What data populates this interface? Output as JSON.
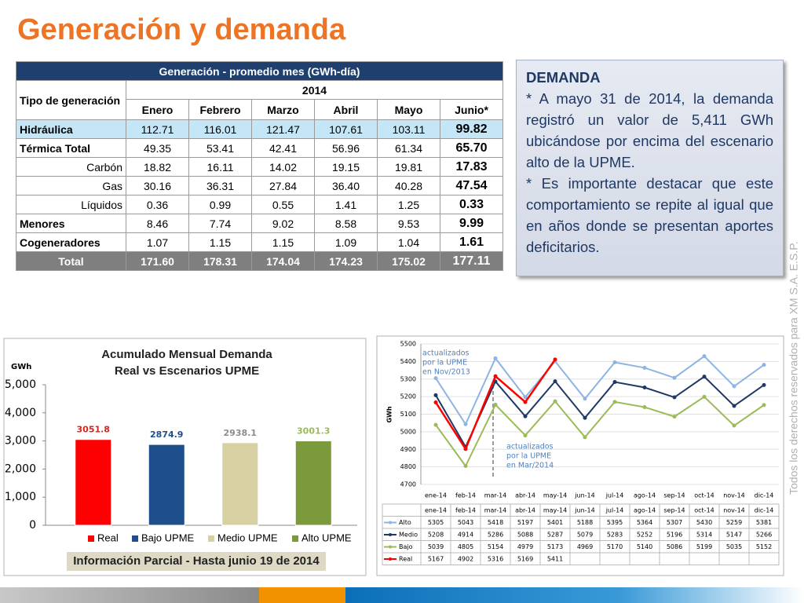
{
  "title": "Generación y demanda",
  "watermark": "Todos los derechos reservados para XM S.A. E.S.P.",
  "table": {
    "caption": "Generación - promedio mes (GWh-día)",
    "row_header": "Tipo de generación",
    "year": "2014",
    "columns": [
      "Enero",
      "Febrero",
      "Marzo",
      "Abril",
      "Mayo",
      "Junio*"
    ],
    "rows": [
      [
        "Hidráulica",
        "112.71",
        "116.01",
        "121.47",
        "107.61",
        "103.11",
        "99.82"
      ],
      [
        "Térmica Total",
        "49.35",
        "53.41",
        "42.41",
        "56.96",
        "61.34",
        "65.70"
      ],
      [
        "Carbón",
        "18.82",
        "16.11",
        "14.02",
        "19.15",
        "19.81",
        "17.83"
      ],
      [
        "Gas",
        "30.16",
        "36.31",
        "27.84",
        "36.40",
        "40.28",
        "47.54"
      ],
      [
        "Líquidos",
        "0.36",
        "0.99",
        "0.55",
        "1.41",
        "1.25",
        "0.33"
      ],
      [
        "Menores",
        "8.46",
        "7.74",
        "9.02",
        "8.58",
        "9.53",
        "9.99"
      ],
      [
        "Cogeneradores",
        "1.07",
        "1.15",
        "1.15",
        "1.09",
        "1.04",
        "1.61"
      ],
      [
        "Total",
        "171.60",
        "178.31",
        "174.04",
        "174.23",
        "175.02",
        "177.11"
      ]
    ]
  },
  "note": {
    "heading": "DEMANDA",
    "paragraphs": [
      "* A mayo 31 de 2014, la demanda registró un valor de 5,411 GWh ubicándose por encima del escenario alto de la UPME.",
      "* Es importante destacar que este comportamiento se repite al igual que en años donde se presentan aportes deficitarios."
    ]
  },
  "chart_data": [
    {
      "type": "bar",
      "title": [
        "Acumulado Mensual Demanda",
        "Real vs Escenarios UPME"
      ],
      "y_label": "GWh",
      "categories": [
        "Real",
        "Bajo UPME",
        "Medio UPME",
        "Alto UPME"
      ],
      "values": [
        3051.8,
        2874.9,
        2938.1,
        3001.3
      ],
      "colors": [
        "#ff0000",
        "#1f4e8c",
        "#d6d0a2",
        "#7a9a3c"
      ],
      "label_colors": [
        "#e0201b",
        "#1f4e8c",
        "#8c8c8c",
        "#9bbb59"
      ],
      "ylim": [
        0,
        5000
      ],
      "yticks": [
        0,
        {
          "value": 1000,
          "label": "1,000"
        },
        {
          "value": 2000,
          "label": "2,000"
        },
        {
          "value": 3000,
          "label": "3,000"
        },
        {
          "value": 4000,
          "label": "4,000"
        },
        {
          "value": 5000,
          "label": "5,000"
        }
      ],
      "legend": "bottom",
      "footnote": "Información Parcial - Hasta junio 19 de 2014"
    },
    {
      "type": "line",
      "y_label": "GWh",
      "categories": [
        "ene-14",
        "feb-14",
        "mar-14",
        "abr-14",
        "may-14",
        "jun-14",
        "jul-14",
        "ago-14",
        "sep-14",
        "oct-14",
        "nov-14",
        "dic-14"
      ],
      "series": [
        {
          "name": "Alto",
          "color": "#8db4e2",
          "values": [
            5305,
            5043,
            5418,
            5197,
            5401,
            5188,
            5395,
            5364,
            5307,
            5430,
            5259,
            5381
          ]
        },
        {
          "name": "Medio",
          "color": "#1f3864",
          "values": [
            5208,
            4914,
            5286,
            5088,
            5287,
            5079,
            5283,
            5252,
            5196,
            5314,
            5147,
            5266
          ]
        },
        {
          "name": "Bajo",
          "color": "#9bbb59",
          "values": [
            5039,
            4805,
            5154,
            4979,
            5173,
            4969,
            5170,
            5140,
            5086,
            5199,
            5035,
            5152
          ]
        },
        {
          "name": "Real",
          "color": "#ff0000",
          "values": [
            5167,
            4902,
            5316,
            5169,
            5411,
            null,
            null,
            null,
            null,
            null,
            null,
            null
          ]
        }
      ],
      "ylim": [
        4700,
        5500
      ],
      "yticks": [
        4700,
        4800,
        4900,
        5000,
        5100,
        5200,
        5300,
        5400,
        5500
      ],
      "grid": true,
      "annotations": [
        [
          "actualizados",
          "por  la  UPME",
          "en Nov/2013"
        ],
        [
          "actualizados",
          "por  la  UPME",
          "en Mar/2014"
        ]
      ]
    }
  ]
}
